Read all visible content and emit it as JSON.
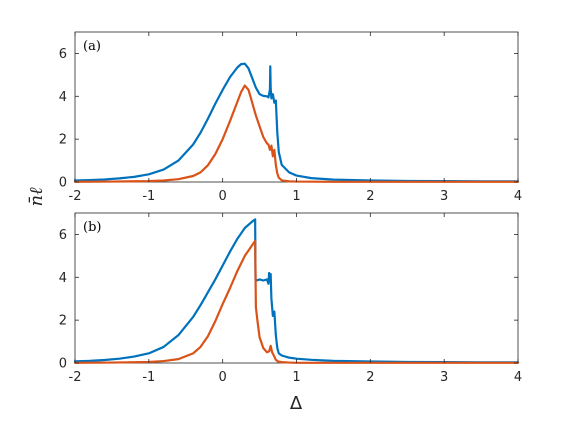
{
  "chart_data": [
    {
      "type": "line",
      "panel_label": "(a)",
      "xlim": [
        -2,
        4
      ],
      "ylim": [
        0,
        7
      ],
      "xticks": [
        -2,
        -1,
        0,
        1,
        2,
        3,
        4
      ],
      "yticks": [
        0,
        2,
        4,
        6
      ],
      "grid": false,
      "colors": [
        "#0072BD",
        "#D95319"
      ],
      "series": [
        {
          "color": "#0072BD",
          "x": [
            -2,
            -1.8,
            -1.6,
            -1.4,
            -1.2,
            -1.0,
            -0.8,
            -0.6,
            -0.4,
            -0.3,
            -0.2,
            -0.1,
            0.0,
            0.1,
            0.2,
            0.25,
            0.3,
            0.35,
            0.4,
            0.45,
            0.5,
            0.55,
            0.6,
            0.62,
            0.64,
            0.645,
            0.65,
            0.66,
            0.68,
            0.7,
            0.72,
            0.74,
            0.76,
            0.8,
            0.9,
            1.0,
            1.2,
            1.5,
            2.0,
            2.5,
            3.0,
            3.5,
            4.0
          ],
          "y": [
            0.07,
            0.09,
            0.12,
            0.17,
            0.24,
            0.36,
            0.58,
            1.0,
            1.75,
            2.3,
            2.95,
            3.65,
            4.3,
            4.9,
            5.35,
            5.5,
            5.52,
            5.3,
            4.85,
            4.4,
            4.1,
            4.02,
            4.0,
            3.95,
            4.3,
            5.4,
            4.4,
            3.9,
            4.1,
            3.7,
            3.8,
            2.3,
            1.4,
            0.8,
            0.45,
            0.3,
            0.18,
            0.11,
            0.07,
            0.05,
            0.04,
            0.03,
            0.03
          ]
        },
        {
          "color": "#D95319",
          "x": [
            -2,
            -1.5,
            -1.0,
            -0.8,
            -0.6,
            -0.4,
            -0.3,
            -0.2,
            -0.1,
            0.0,
            0.1,
            0.2,
            0.25,
            0.3,
            0.35,
            0.4,
            0.45,
            0.5,
            0.55,
            0.6,
            0.62,
            0.64,
            0.66,
            0.68,
            0.7,
            0.72,
            0.74,
            0.76,
            0.8,
            0.9,
            1.0,
            1.5,
            2.0,
            3.0,
            4.0
          ],
          "y": [
            0.01,
            0.02,
            0.04,
            0.07,
            0.13,
            0.28,
            0.45,
            0.78,
            1.3,
            2.0,
            2.85,
            3.75,
            4.2,
            4.5,
            4.3,
            3.7,
            3.1,
            2.6,
            2.1,
            1.8,
            1.75,
            1.5,
            1.7,
            1.2,
            1.5,
            0.8,
            0.4,
            0.2,
            0.08,
            0.03,
            0.02,
            0.01,
            0.01,
            0.01,
            0.01
          ]
        }
      ]
    },
    {
      "type": "line",
      "panel_label": "(b)",
      "xlim": [
        -2,
        4
      ],
      "ylim": [
        0,
        7
      ],
      "xticks": [
        -2,
        -1,
        0,
        1,
        2,
        3,
        4
      ],
      "yticks": [
        0,
        2,
        4,
        6
      ],
      "grid": false,
      "colors": [
        "#0072BD",
        "#D95319"
      ],
      "xlabel": "Δ",
      "ylabel": "n̄ℓ",
      "series": [
        {
          "color": "#0072BD",
          "x": [
            -2,
            -1.8,
            -1.6,
            -1.4,
            -1.2,
            -1.0,
            -0.8,
            -0.6,
            -0.4,
            -0.3,
            -0.2,
            -0.1,
            0.0,
            0.1,
            0.2,
            0.3,
            0.4,
            0.44,
            0.445,
            0.46,
            0.5,
            0.55,
            0.6,
            0.62,
            0.63,
            0.64,
            0.65,
            0.66,
            0.68,
            0.7,
            0.72,
            0.74,
            0.76,
            0.8,
            0.9,
            1.0,
            1.2,
            1.5,
            2.0,
            2.5,
            3.0,
            3.5,
            4.0
          ],
          "y": [
            0.08,
            0.1,
            0.14,
            0.2,
            0.3,
            0.45,
            0.75,
            1.3,
            2.15,
            2.7,
            3.3,
            3.9,
            4.55,
            5.2,
            5.8,
            6.3,
            6.6,
            6.7,
            3.9,
            3.85,
            3.9,
            3.85,
            3.9,
            3.7,
            4.2,
            3.8,
            4.15,
            3.0,
            2.2,
            2.4,
            1.3,
            0.7,
            0.45,
            0.35,
            0.25,
            0.2,
            0.15,
            0.1,
            0.07,
            0.05,
            0.04,
            0.03,
            0.03
          ]
        },
        {
          "color": "#D95319",
          "x": [
            -2,
            -1.5,
            -1.0,
            -0.8,
            -0.6,
            -0.4,
            -0.3,
            -0.2,
            -0.1,
            0.0,
            0.1,
            0.2,
            0.3,
            0.4,
            0.44,
            0.45,
            0.47,
            0.5,
            0.55,
            0.6,
            0.63,
            0.65,
            0.67,
            0.7,
            0.72,
            0.75,
            0.8,
            0.9,
            1.0,
            1.5,
            2.0,
            3.0,
            4.0
          ],
          "y": [
            0.01,
            0.02,
            0.05,
            0.09,
            0.18,
            0.45,
            0.75,
            1.25,
            1.95,
            2.75,
            3.5,
            4.3,
            5.0,
            5.5,
            5.7,
            2.6,
            2.0,
            1.2,
            0.7,
            0.5,
            0.55,
            0.8,
            0.5,
            0.3,
            0.15,
            0.07,
            0.04,
            0.02,
            0.01,
            0.01,
            0.01,
            0.01,
            0.01
          ]
        }
      ]
    }
  ]
}
